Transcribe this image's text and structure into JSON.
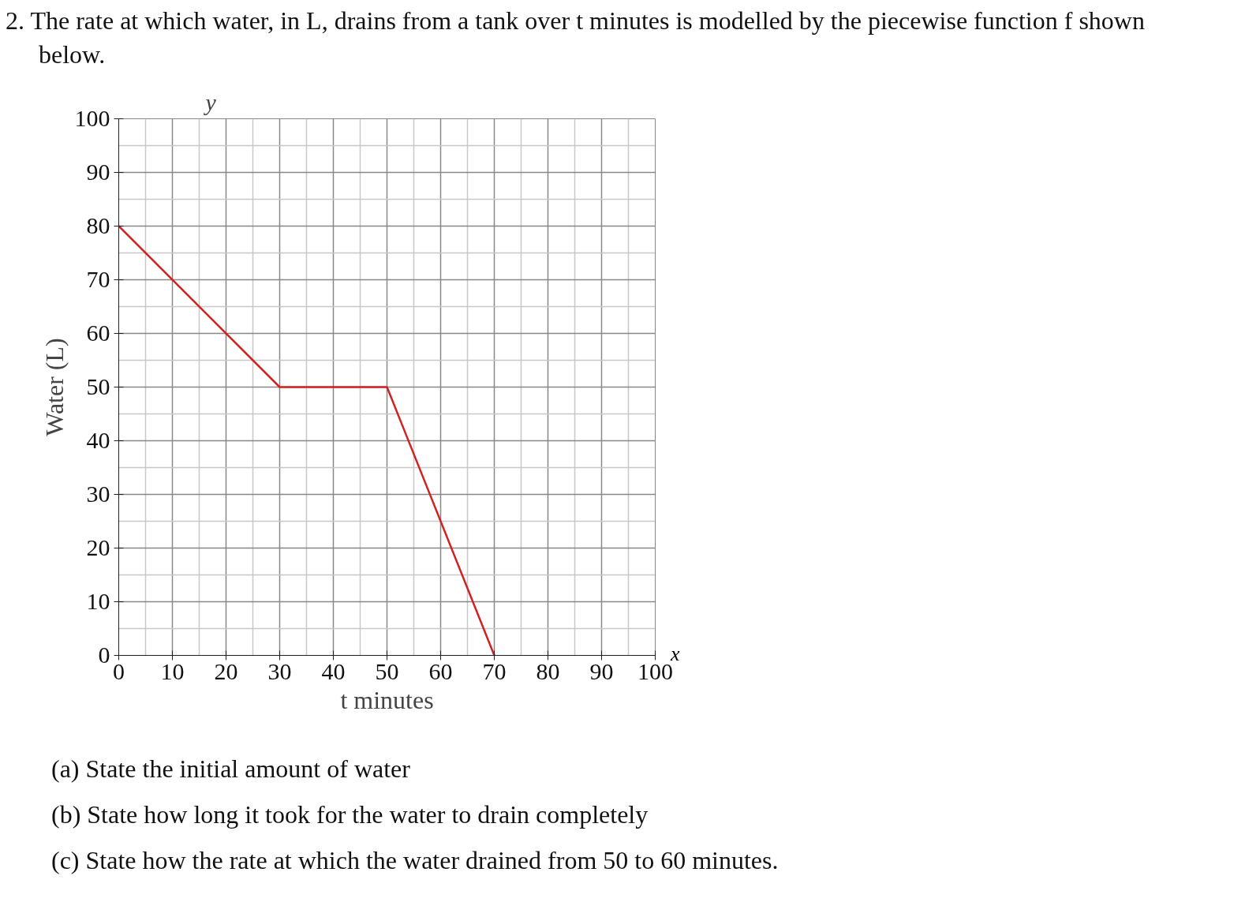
{
  "chart_data": {
    "type": "line",
    "title": "2. The rate at which water, in L, drains from a tank over t minutes is modelled by the piecewise function f shown below.",
    "xlabel": "t minutes",
    "ylabel": "Water (L)",
    "annotations": [
      "y",
      "x",
      "(a) State the initial amount of water",
      "(b) State how long it took for the water to drain completely",
      "(c) State how the rate at which the water drained from 50 to 60 minutes."
    ],
    "series": [
      {
        "color": "#d42020",
        "x": [
          0,
          30,
          50,
          70
        ],
        "values": [
          80,
          50,
          50,
          0
        ]
      }
    ],
    "xlim": [
      0,
      100
    ],
    "ylim": [
      0,
      100
    ],
    "xticks": [
      0,
      10,
      20,
      30,
      40,
      50,
      60,
      70,
      80,
      90,
      100
    ],
    "yticks": [
      0,
      10,
      20,
      30,
      40,
      50,
      60,
      70,
      80,
      90,
      100
    ],
    "grid": true,
    "marker": "none",
    "line_style": "solid"
  }
}
